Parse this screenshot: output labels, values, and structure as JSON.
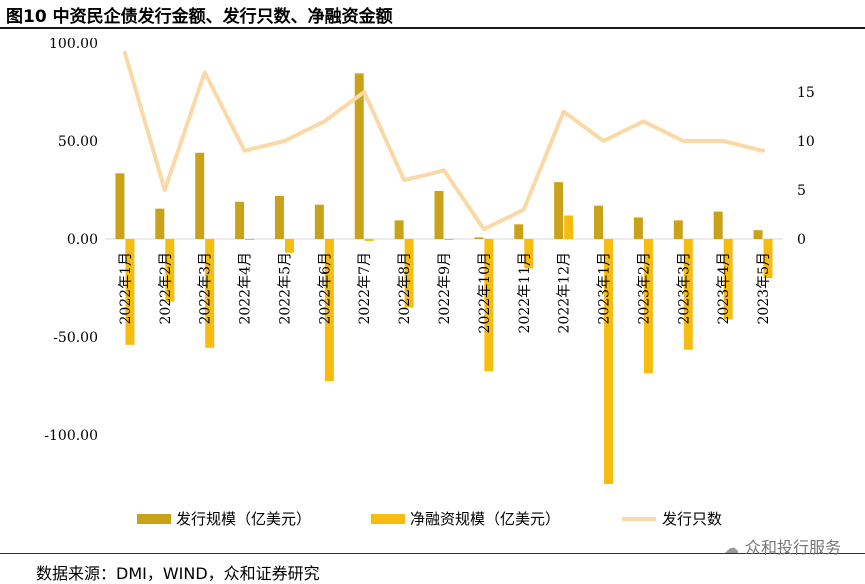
{
  "figure": {
    "title": "图10 中资民企债发行金额、发行只数、净融资金额",
    "source": "数据来源：DMI，WIND，众和证券研究",
    "watermark": "众和投行服务"
  },
  "chart_data": {
    "type": "bar",
    "categories": [
      "2022年1月",
      "2022年2月",
      "2022年3月",
      "2022年4月",
      "2022年5月",
      "2022年6月",
      "2022年7月",
      "2022年8月",
      "2022年9月",
      "2022年10月",
      "2022年11月",
      "2022年12月",
      "2023年1月",
      "2023年2月",
      "2023年3月",
      "2023年4月",
      "2023年5月"
    ],
    "series": [
      {
        "name": "发行规模（亿美元）",
        "kind": "bar",
        "axis": "left",
        "color": "#c9a21a",
        "values": [
          33.5,
          15.5,
          44.0,
          19.0,
          22.0,
          17.5,
          84.5,
          9.5,
          24.5,
          0.8,
          7.5,
          29.0,
          17.0,
          11.0,
          9.5,
          14.0,
          4.5
        ]
      },
      {
        "name": "净融资规模（亿美元）",
        "kind": "bar",
        "axis": "left",
        "color": "#f7bc10",
        "values": [
          -54.0,
          -32.0,
          -55.5,
          -0.5,
          -7.0,
          -72.5,
          -1.0,
          -35.0,
          -0.5,
          -67.5,
          -15.0,
          12.0,
          -125.0,
          -68.5,
          -56.5,
          -41.0,
          -20.0
        ]
      },
      {
        "name": "发行只数",
        "kind": "line",
        "axis": "right",
        "color": "#fbd9a6",
        "values": [
          19,
          5,
          17,
          9,
          10,
          12,
          15,
          6,
          7,
          1,
          3,
          13,
          10,
          12,
          10,
          10,
          9
        ]
      }
    ],
    "left_axis": {
      "ylim": [
        -130,
        100
      ],
      "ticks": [
        "100.00",
        "50.00",
        "0.00",
        "-50.00",
        "-100.00"
      ]
    },
    "right_axis": {
      "ylim": [
        0,
        20
      ],
      "ticks": [
        "15",
        "10",
        "5",
        "0"
      ]
    },
    "grid": false,
    "legend_position": "bottom"
  }
}
